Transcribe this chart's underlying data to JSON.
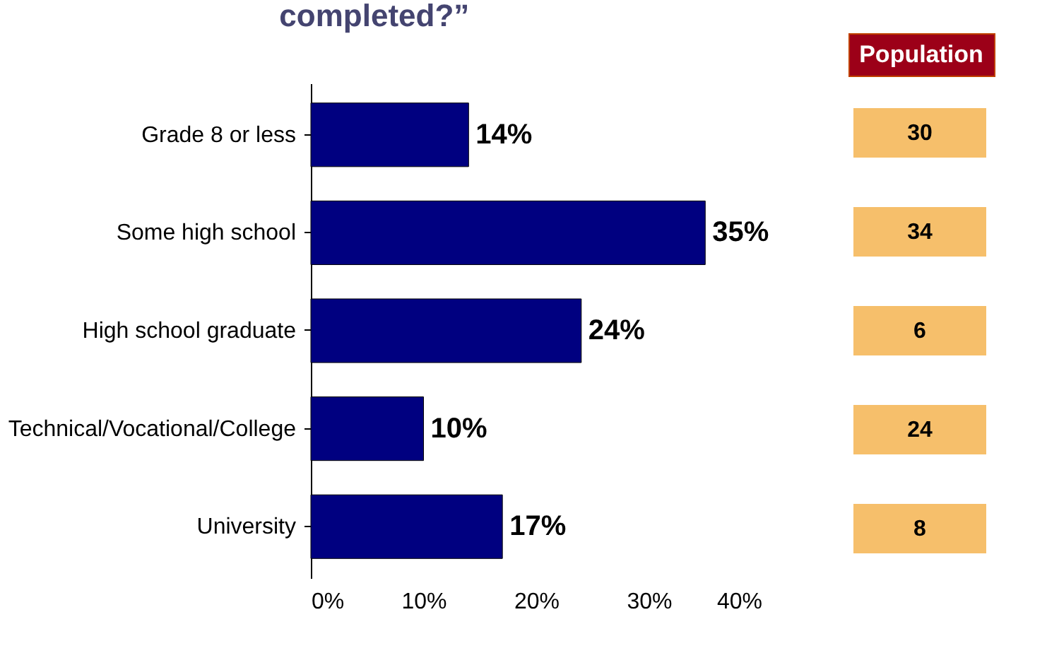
{
  "chart_data": [
    {
      "type": "bar",
      "orientation": "horizontal",
      "title": "completed?”",
      "categories": [
        "Grade 8 or less",
        "Some high school",
        "High school graduate",
        "Technical/Vocational/College",
        "University"
      ],
      "values": [
        14,
        35,
        24,
        10,
        17
      ],
      "value_labels": [
        "14%",
        "35%",
        "24%",
        "10%",
        "17%"
      ],
      "color": "#000080",
      "xlim": [
        0,
        40
      ],
      "xticks": [
        {
          "value": 0,
          "label": "0%"
        },
        {
          "value": 10,
          "label": "10%"
        },
        {
          "value": 20,
          "label": "20%"
        },
        {
          "value": 30,
          "label": "30%"
        },
        {
          "value": 40,
          "label": "40%"
        }
      ],
      "grid": false
    },
    {
      "type": "other",
      "title": "Population",
      "categories": [
        null,
        null,
        null,
        null,
        null
      ],
      "values": [
        30,
        34,
        6,
        24,
        8
      ],
      "data_labels": true
    }
  ]
}
